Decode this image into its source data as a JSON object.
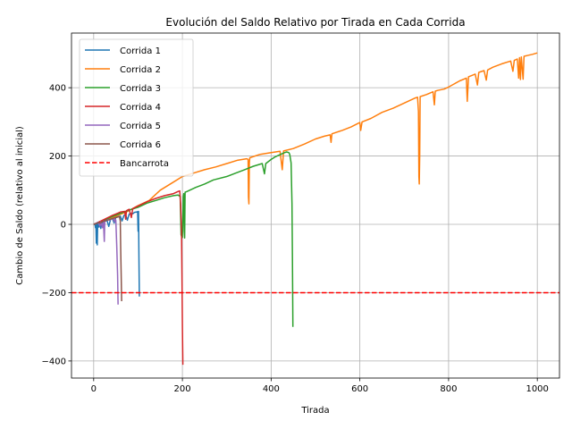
{
  "chart_data": {
    "type": "line",
    "title": "Evolución del Saldo Relativo por Tirada en Cada Corrida",
    "xlabel": "Tirada",
    "ylabel": "Cambio de Saldo (relativo al inicial)",
    "xlim": [
      -50,
      1050
    ],
    "ylim": [
      -450,
      560
    ],
    "xticks": [
      0,
      200,
      400,
      600,
      800,
      1000
    ],
    "yticks": [
      -400,
      -200,
      0,
      200,
      400
    ],
    "grid": true,
    "legend_position": "upper-left",
    "series": [
      {
        "name": "Corrida 1",
        "color": "#1f77b4",
        "points": [
          [
            0,
            0
          ],
          [
            3,
            1
          ],
          [
            4,
            -10
          ],
          [
            5,
            2
          ],
          [
            6,
            -55
          ],
          [
            7,
            3
          ],
          [
            8,
            -60
          ],
          [
            9,
            5
          ],
          [
            10,
            4
          ],
          [
            12,
            -8
          ],
          [
            14,
            6
          ],
          [
            16,
            -12
          ],
          [
            18,
            8
          ],
          [
            20,
            9
          ],
          [
            22,
            -5
          ],
          [
            25,
            11
          ],
          [
            28,
            10
          ],
          [
            30,
            12
          ],
          [
            34,
            -6
          ],
          [
            38,
            15
          ],
          [
            42,
            17
          ],
          [
            46,
            4
          ],
          [
            50,
            20
          ],
          [
            55,
            22
          ],
          [
            60,
            24
          ],
          [
            64,
            10
          ],
          [
            68,
            26
          ],
          [
            72,
            28
          ],
          [
            76,
            12
          ],
          [
            80,
            30
          ],
          [
            84,
            32
          ],
          [
            88,
            31
          ],
          [
            92,
            35
          ],
          [
            96,
            36
          ],
          [
            99,
            37
          ],
          [
            100,
            -20
          ],
          [
            101,
            38
          ],
          [
            102,
            -80
          ],
          [
            103,
            -211
          ]
        ]
      },
      {
        "name": "Corrida 2",
        "color": "#ff7f0e",
        "points": [
          [
            0,
            0
          ],
          [
            25,
            12
          ],
          [
            50,
            24
          ],
          [
            75,
            37
          ],
          [
            100,
            55
          ],
          [
            125,
            70
          ],
          [
            150,
            100
          ],
          [
            175,
            120
          ],
          [
            200,
            140
          ],
          [
            225,
            150
          ],
          [
            250,
            160
          ],
          [
            275,
            168
          ],
          [
            300,
            178
          ],
          [
            325,
            188
          ],
          [
            345,
            192
          ],
          [
            348,
            190
          ],
          [
            349,
            80
          ],
          [
            350,
            60
          ],
          [
            351,
            180
          ],
          [
            352,
            195
          ],
          [
            375,
            205
          ],
          [
            400,
            210
          ],
          [
            410,
            212
          ],
          [
            420,
            214
          ],
          [
            425,
            160
          ],
          [
            428,
            215
          ],
          [
            450,
            222
          ],
          [
            475,
            235
          ],
          [
            500,
            250
          ],
          [
            520,
            258
          ],
          [
            533,
            262
          ],
          [
            535,
            240
          ],
          [
            537,
            265
          ],
          [
            560,
            275
          ],
          [
            580,
            285
          ],
          [
            600,
            298
          ],
          [
            602,
            275
          ],
          [
            605,
            300
          ],
          [
            625,
            310
          ],
          [
            650,
            328
          ],
          [
            675,
            340
          ],
          [
            700,
            355
          ],
          [
            725,
            370
          ],
          [
            730,
            372
          ],
          [
            732,
            330
          ],
          [
            733,
            140
          ],
          [
            734,
            118
          ],
          [
            735,
            200
          ],
          [
            736,
            374
          ],
          [
            750,
            380
          ],
          [
            765,
            388
          ],
          [
            768,
            350
          ],
          [
            770,
            390
          ],
          [
            775,
            392
          ],
          [
            790,
            396
          ],
          [
            800,
            402
          ],
          [
            825,
            420
          ],
          [
            840,
            428
          ],
          [
            842,
            360
          ],
          [
            845,
            432
          ],
          [
            860,
            440
          ],
          [
            865,
            408
          ],
          [
            868,
            445
          ],
          [
            880,
            450
          ],
          [
            885,
            422
          ],
          [
            888,
            452
          ],
          [
            900,
            460
          ],
          [
            920,
            470
          ],
          [
            940,
            478
          ],
          [
            945,
            448
          ],
          [
            948,
            480
          ],
          [
            955,
            484
          ],
          [
            958,
            428
          ],
          [
            960,
            488
          ],
          [
            962,
            424
          ],
          [
            964,
            490
          ],
          [
            968,
            425
          ],
          [
            970,
            492
          ],
          [
            980,
            495
          ],
          [
            990,
            498
          ],
          [
            1000,
            502
          ]
        ]
      },
      {
        "name": "Corrida 3",
        "color": "#2ca02c",
        "points": [
          [
            0,
            0
          ],
          [
            20,
            10
          ],
          [
            40,
            22
          ],
          [
            60,
            32
          ],
          [
            80,
            42
          ],
          [
            100,
            50
          ],
          [
            120,
            62
          ],
          [
            140,
            70
          ],
          [
            160,
            78
          ],
          [
            180,
            84
          ],
          [
            190,
            86
          ],
          [
            195,
            82
          ],
          [
            197,
            -30
          ],
          [
            199,
            -40
          ],
          [
            200,
            -38
          ],
          [
            202,
            80
          ],
          [
            203,
            90
          ],
          [
            204,
            -20
          ],
          [
            205,
            -40
          ],
          [
            206,
            94
          ],
          [
            210,
            96
          ],
          [
            230,
            108
          ],
          [
            250,
            118
          ],
          [
            270,
            130
          ],
          [
            300,
            140
          ],
          [
            320,
            150
          ],
          [
            340,
            160
          ],
          [
            360,
            170
          ],
          [
            380,
            178
          ],
          [
            385,
            148
          ],
          [
            388,
            178
          ],
          [
            400,
            190
          ],
          [
            410,
            198
          ],
          [
            420,
            204
          ],
          [
            430,
            210
          ],
          [
            435,
            212
          ],
          [
            440,
            210
          ],
          [
            442,
            205
          ],
          [
            445,
            180
          ],
          [
            447,
            60
          ],
          [
            448,
            -100
          ],
          [
            449,
            -300
          ]
        ]
      },
      {
        "name": "Corrida 4",
        "color": "#d62728",
        "points": [
          [
            0,
            0
          ],
          [
            20,
            12
          ],
          [
            40,
            25
          ],
          [
            60,
            36
          ],
          [
            70,
            38
          ],
          [
            72,
            15
          ],
          [
            74,
            40
          ],
          [
            80,
            44
          ],
          [
            85,
            20
          ],
          [
            88,
            46
          ],
          [
            100,
            54
          ],
          [
            120,
            66
          ],
          [
            140,
            76
          ],
          [
            160,
            84
          ],
          [
            180,
            90
          ],
          [
            190,
            96
          ],
          [
            194,
            98
          ],
          [
            196,
            60
          ],
          [
            198,
            -20
          ],
          [
            199,
            -150
          ],
          [
            200,
            -300
          ],
          [
            201,
            -411
          ]
        ]
      },
      {
        "name": "Corrida 5",
        "color": "#9467bd",
        "points": [
          [
            0,
            0
          ],
          [
            5,
            3
          ],
          [
            10,
            6
          ],
          [
            14,
            -5
          ],
          [
            16,
            7
          ],
          [
            20,
            -10
          ],
          [
            22,
            10
          ],
          [
            24,
            -50
          ],
          [
            25,
            8
          ],
          [
            28,
            11
          ],
          [
            32,
            14
          ],
          [
            36,
            12
          ],
          [
            40,
            16
          ],
          [
            44,
            18
          ],
          [
            46,
            8
          ],
          [
            48,
            15
          ],
          [
            50,
            12
          ],
          [
            52,
            -60
          ],
          [
            54,
            -150
          ],
          [
            55,
            -235
          ]
        ]
      },
      {
        "name": "Corrida 6",
        "color": "#8c564b",
        "points": [
          [
            0,
            0
          ],
          [
            5,
            2
          ],
          [
            10,
            5
          ],
          [
            15,
            4
          ],
          [
            20,
            8
          ],
          [
            25,
            10
          ],
          [
            30,
            12
          ],
          [
            35,
            14
          ],
          [
            40,
            16
          ],
          [
            45,
            18
          ],
          [
            50,
            20
          ],
          [
            55,
            22
          ],
          [
            58,
            23
          ],
          [
            60,
            10
          ],
          [
            61,
            -80
          ],
          [
            62,
            -150
          ],
          [
            63,
            -225
          ]
        ]
      }
    ],
    "reference_line": {
      "name": "Bancarrota",
      "y": -200,
      "color": "#ff0000",
      "style": "dashed"
    }
  }
}
